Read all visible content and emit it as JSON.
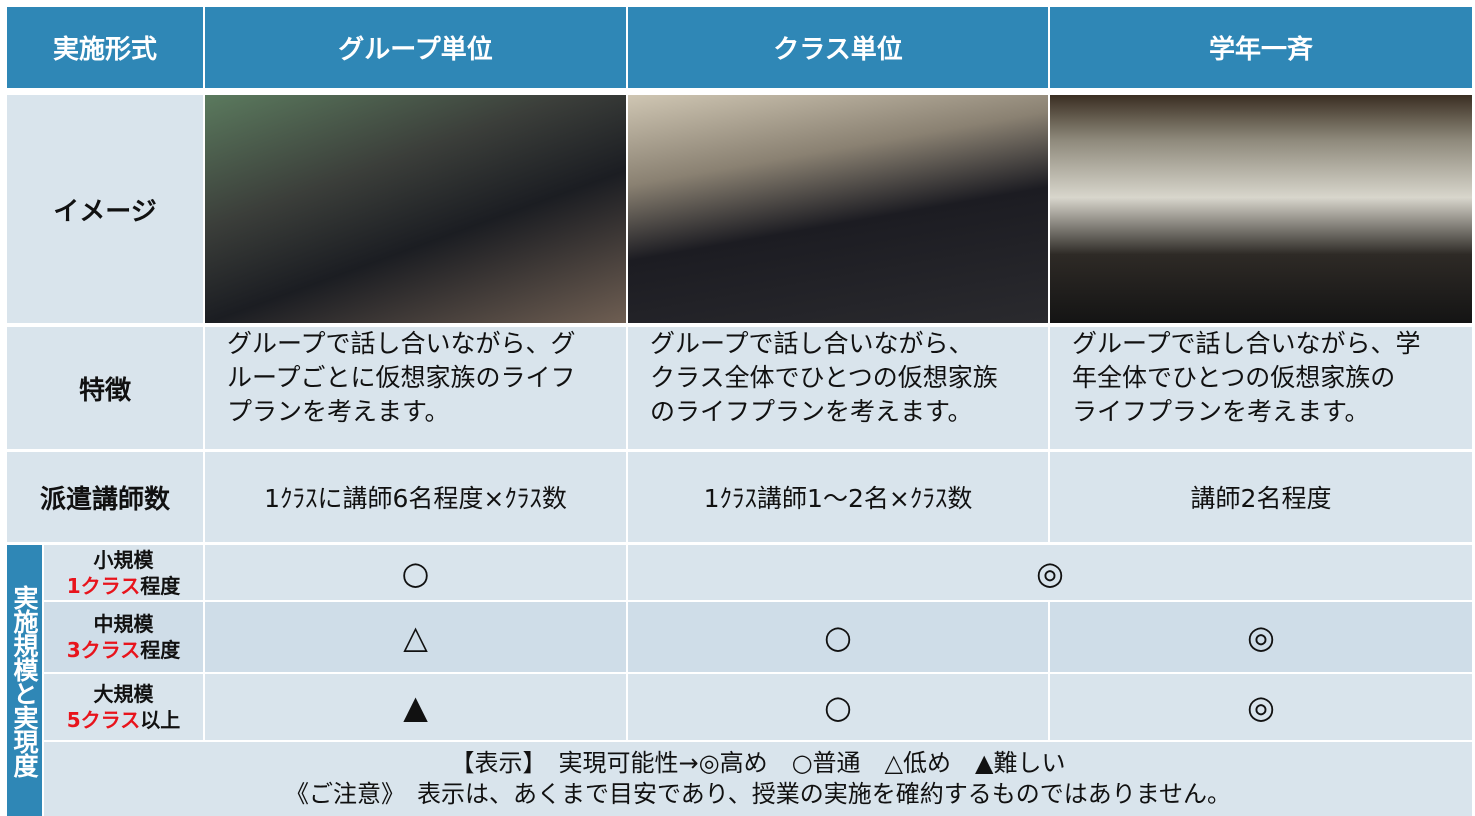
{
  "header": [
    "実施形式",
    "グループ単位",
    "クラス単位",
    "学年一斉"
  ],
  "image_row": {
    "label": "イメージ"
  },
  "features": {
    "label": "特徴",
    "cells": [
      [
        "グループで話し合いながら、グ",
        "ループごとに仮想家族のライフ",
        "プランを考えます。"
      ],
      [
        "グループで話し合いながら、",
        "クラス全体でひとつの仮想家族",
        "のライフプランを考えます。"
      ],
      [
        "グループで話し合いながら、学",
        "年全体でひとつの仮想家族の",
        "ライフプランを考えます。"
      ]
    ]
  },
  "instructors": {
    "label": "派遣講師数",
    "cells": [
      "1ｸﾗｽに講師6名程度×ｸﾗｽ数",
      "1ｸﾗｽ講師1～2名×ｸﾗｽ数",
      "講師2名程度"
    ]
  },
  "scale": {
    "label": "実施規模と実現度",
    "rows": [
      {
        "size": "小規模",
        "count": "1クラス",
        "suffix": "程度",
        "marks": [
          "○",
          "◎"
        ]
      },
      {
        "size": "中規模",
        "count": "3クラス",
        "suffix": "程度",
        "marks": [
          "△",
          "○",
          "◎"
        ]
      },
      {
        "size": "大規模",
        "count": "5クラス",
        "suffix": "以上",
        "marks": [
          "▲",
          "○",
          "◎"
        ]
      }
    ]
  },
  "notes": [
    "【表示】　実現可能性→◎高め　○普通　△低め　▲難しい",
    "《ご注意》　表示は、あくまで目安であり、授業の実施を確約するものではありません。"
  ]
}
